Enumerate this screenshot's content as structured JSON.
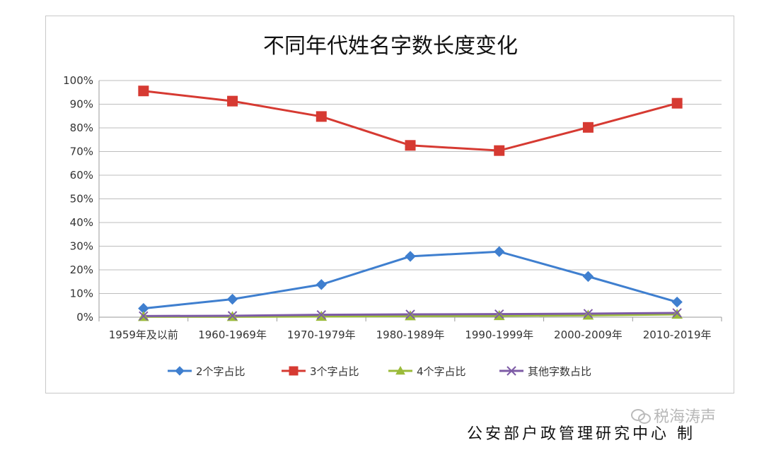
{
  "chart_data": {
    "type": "line",
    "title": "不同年代姓名字数长度变化",
    "categories": [
      "1959年及以前",
      "1960-1969年",
      "1970-1979年",
      "1980-1989年",
      "1990-1999年",
      "2000-2009年",
      "2010-2019年"
    ],
    "y_ticks": [
      "0%",
      "10%",
      "20%",
      "30%",
      "40%",
      "50%",
      "60%",
      "70%",
      "80%",
      "90%",
      "100%"
    ],
    "ylim": [
      0,
      100
    ],
    "grid": true,
    "legend_position": "bottom",
    "series": [
      {
        "name": "2个字占比",
        "color": "#3f7fcf",
        "marker": "diamond",
        "values": [
          3.7,
          7.6,
          13.8,
          25.7,
          27.7,
          17.2,
          6.4
        ]
      },
      {
        "name": "3个字占比",
        "color": "#d63a32",
        "marker": "square",
        "values": [
          95.6,
          91.3,
          84.8,
          72.6,
          70.4,
          80.2,
          90.4
        ]
      },
      {
        "name": "4个字占比",
        "color": "#9bbb3a",
        "marker": "triangle",
        "values": [
          0.2,
          0.2,
          0.3,
          0.5,
          0.6,
          0.8,
          1.2
        ]
      },
      {
        "name": "其他字数占比",
        "color": "#7d5ba6",
        "marker": "x",
        "values": [
          0.5,
          0.6,
          1.0,
          1.2,
          1.3,
          1.5,
          1.8
        ]
      }
    ]
  },
  "footer": {
    "credit": "公安部户政管理研究中心  制",
    "watermark": "税海涛声"
  }
}
